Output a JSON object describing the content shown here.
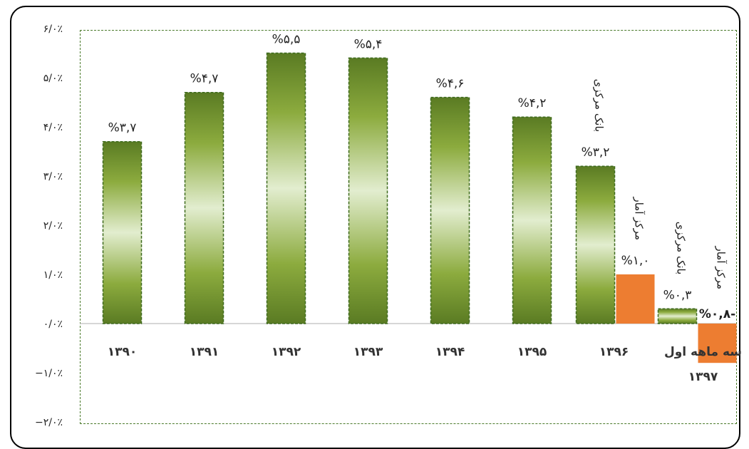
{
  "chart_data": {
    "type": "bar",
    "title": "",
    "xlabel": "",
    "ylabel": "",
    "ylim": [
      -0.02,
      0.06
    ],
    "y_ticks": [
      {
        "value": 0.06,
        "label": "۶/۰٪"
      },
      {
        "value": 0.05,
        "label": "۵/۰٪"
      },
      {
        "value": 0.04,
        "label": "۴/۰٪"
      },
      {
        "value": 0.03,
        "label": "۳/۰٪"
      },
      {
        "value": 0.02,
        "label": "۲/۰٪"
      },
      {
        "value": 0.01,
        "label": "۱/۰٪"
      },
      {
        "value": 0.0,
        "label": "۰/۰٪"
      },
      {
        "value": -0.01,
        "label": "−۱/۰٪"
      },
      {
        "value": -0.02,
        "label": "−۲/۰٪"
      }
    ],
    "categories": [
      "۱۳۹۰",
      "۱۳۹۱",
      "۱۳۹۲",
      "۱۳۹۳",
      "۱۳۹۴",
      "۱۳۹۵",
      "۱۳۹۶",
      "سه ماهه اول ۱۳۹۷"
    ],
    "category_labels": [
      [
        "۱۳۹۰"
      ],
      [
        "۱۳۹۱"
      ],
      [
        "۱۳۹۲"
      ],
      [
        "۱۳۹۳"
      ],
      [
        "۱۳۹۴"
      ],
      [
        "۱۳۹۵"
      ],
      [
        "۱۳۹۶"
      ],
      [
        "سه ماهه اول",
        "۱۳۹۷"
      ]
    ],
    "series": [
      {
        "name": "بانک مرکزی",
        "color": "#6e8f2f",
        "values": [
          0.037,
          0.047,
          0.055,
          0.054,
          0.046,
          0.042,
          0.032,
          0.003
        ],
        "labels": [
          "%۳,۷",
          "%۴,۷",
          "%۵,۵",
          "%۵,۴",
          "%۴,۶",
          "%۴,۲",
          "%۳,۲",
          "%۰,۳"
        ]
      },
      {
        "name": "مرکز آمار",
        "color": "#ed7d31",
        "values": [
          null,
          null,
          null,
          null,
          null,
          null,
          0.01,
          -0.008
        ],
        "labels": [
          "",
          "",
          "",
          "",
          "",
          "",
          "%۱,۰",
          "%۰,۸-"
        ]
      }
    ],
    "annotations": [
      {
        "text": "بانک مرکزی",
        "category": 6,
        "series": 0
      },
      {
        "text": "مرکز آمار",
        "category": 6,
        "series": 1
      },
      {
        "text": "بانک مرکزی",
        "category": 7,
        "series": 0
      },
      {
        "text": "مرکز آمار",
        "category": 7,
        "series": 1
      }
    ],
    "grid": false,
    "legend": "none"
  }
}
